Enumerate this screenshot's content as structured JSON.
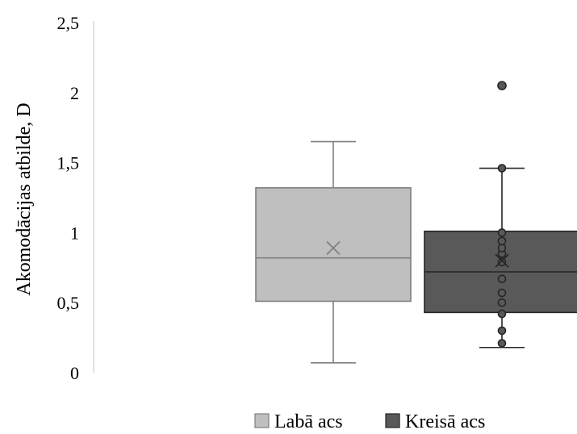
{
  "chart_data": {
    "type": "box",
    "title": "",
    "xlabel": "",
    "ylabel": "Akomodācijas atbilde, D",
    "ylim": [
      0,
      2.5
    ],
    "yticks": [
      {
        "value": 0,
        "label": "0"
      },
      {
        "value": 0.5,
        "label": "0,5"
      },
      {
        "value": 1,
        "label": "1"
      },
      {
        "value": 1.5,
        "label": "1,5"
      },
      {
        "value": 2,
        "label": "2"
      },
      {
        "value": 2.5,
        "label": "2,5"
      }
    ],
    "grid": false,
    "legend_position": "bottom",
    "series": [
      {
        "name": "Labā acs",
        "color": "#bfbfbf",
        "min": 0.07,
        "q1": 0.51,
        "median": 0.82,
        "q3": 1.32,
        "max": 1.65,
        "mean": 0.89,
        "points": []
      },
      {
        "name": "Kreisā acs",
        "color": "#595959",
        "min": 0.18,
        "q1": 0.43,
        "median": 0.72,
        "q3": 1.01,
        "max": 1.46,
        "mean": 0.8,
        "points": [
          0.21,
          0.3,
          0.42,
          0.5,
          0.57,
          0.67,
          0.79,
          0.85,
          0.89,
          0.94,
          1.0,
          1.46,
          2.05
        ],
        "outliers": [
          2.05
        ]
      }
    ]
  }
}
